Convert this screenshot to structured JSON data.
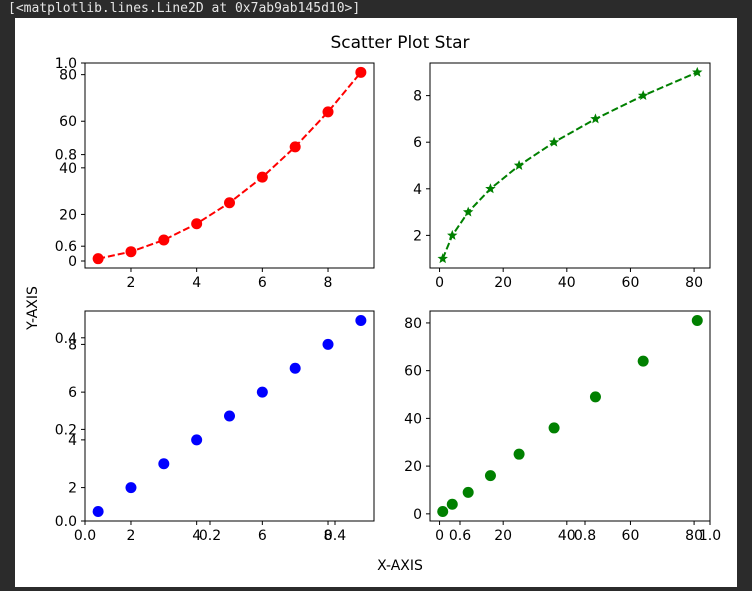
{
  "console": {
    "output_text": "[<matplotlib.lines.Line2D at 0x7ab9ab145d10>]"
  },
  "figure": {
    "suptitle": "Scatter Plot Star",
    "supxlabel": "X-AXIS",
    "supylabel": "Y-AXIS",
    "background_axes_ticks": {
      "x": [
        "0.0",
        "0.2",
        "0.4",
        "0.6",
        "0.8",
        "1.0"
      ],
      "y": [
        "0.0",
        "0.2",
        "0.4",
        "0.6",
        "0.8",
        "1.0"
      ]
    }
  },
  "chart_data": [
    {
      "type": "line",
      "subplot": "top-left",
      "x": [
        1,
        2,
        3,
        4,
        5,
        6,
        7,
        8,
        9
      ],
      "y": [
        1,
        4,
        9,
        16,
        25,
        36,
        49,
        64,
        81
      ],
      "xlim": [
        0.6,
        9.4
      ],
      "ylim": [
        -3,
        85
      ],
      "xticks": [
        2,
        4,
        6,
        8
      ],
      "yticks": [
        0,
        20,
        40,
        60,
        80
      ],
      "color": "#ff0000",
      "marker": "circle",
      "linestyle": "dashed"
    },
    {
      "type": "line",
      "subplot": "top-right",
      "x": [
        1,
        4,
        9,
        16,
        25,
        36,
        49,
        64,
        81
      ],
      "y": [
        1,
        2,
        3,
        4,
        5,
        6,
        7,
        8,
        9
      ],
      "xlim": [
        -3,
        85
      ],
      "ylim": [
        0.6,
        9.4
      ],
      "xticks": [
        0,
        20,
        40,
        60,
        80
      ],
      "yticks": [
        2,
        4,
        6,
        8
      ],
      "color": "#008000",
      "marker": "star",
      "linestyle": "dashed"
    },
    {
      "type": "scatter",
      "subplot": "bottom-left",
      "x": [
        1,
        2,
        3,
        4,
        5,
        6,
        7,
        8,
        9
      ],
      "y": [
        1,
        2,
        3,
        4,
        5,
        6,
        7,
        8,
        9
      ],
      "xlim": [
        0.6,
        9.4
      ],
      "ylim": [
        0.6,
        9.4
      ],
      "xticks": [
        2,
        4,
        6,
        8
      ],
      "yticks": [
        2,
        4,
        6,
        8
      ],
      "color": "#0000ff",
      "marker": "circle"
    },
    {
      "type": "scatter",
      "subplot": "bottom-right",
      "x": [
        1,
        4,
        9,
        16,
        25,
        36,
        49,
        64,
        81
      ],
      "y": [
        1,
        4,
        9,
        16,
        25,
        36,
        49,
        64,
        81
      ],
      "xlim": [
        -3,
        85
      ],
      "ylim": [
        -3,
        85
      ],
      "xticks": [
        0,
        20,
        40,
        60,
        80
      ],
      "yticks": [
        0,
        20,
        40,
        60,
        80
      ],
      "color": "#008000",
      "marker": "circle"
    }
  ]
}
